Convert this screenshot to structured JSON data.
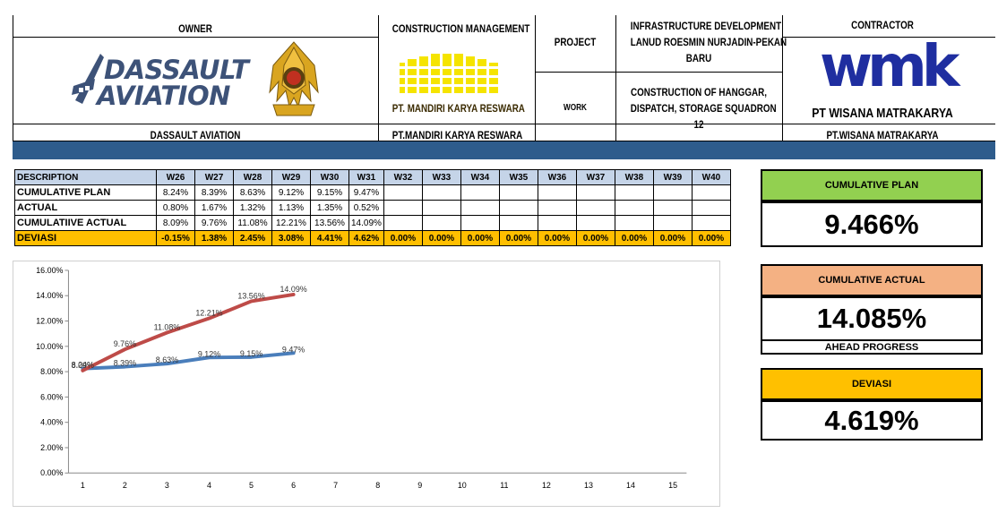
{
  "header": {
    "owner_title": "OWNER",
    "owner_name": "DASSAULT AVIATION",
    "owner_logo_line1": "DASSAULT",
    "owner_logo_line2": "AVIATION",
    "cm_title": "CONSTRUCTION MANAGEMENT",
    "cm_logo_text": "PT. MANDIRI KARYA RESWARA",
    "cm_name": "PT.MANDIRI KARYA RESWARA",
    "project_label": "PROJECT",
    "project_line1": "INFRASTRUCTURE DEVELOPMENT",
    "project_line2": "LANUD ROESMIN NURJADIN-PEKAN",
    "project_line3": "BARU",
    "work_label": "WORK",
    "work_line1": "CONSTRUCTION OF HANGGAR,",
    "work_line2": "DISPATCH, STORAGE SQUADRON",
    "work_line3": "12",
    "contractor_title": "CONTRACTOR",
    "contractor_logo_text": "wmk",
    "contractor_logo_name": "PT WISANA MATRAKARYA",
    "contractor_name": "PT.WISANA MATRAKARYA"
  },
  "table": {
    "description_header": "DESCRIPTION",
    "weeks": [
      "W26",
      "W27",
      "W28",
      "W29",
      "W30",
      "W31",
      "W32",
      "W33",
      "W34",
      "W35",
      "W36",
      "W37",
      "W38",
      "W39",
      "W40"
    ],
    "rows": [
      {
        "label": "CUMULATIVE PLAN",
        "values": [
          "8.24%",
          "8.39%",
          "8.63%",
          "9.12%",
          "9.15%",
          "9.47%",
          "",
          "",
          "",
          "",
          "",
          "",
          "",
          "",
          ""
        ]
      },
      {
        "label": "ACTUAL",
        "values": [
          "0.80%",
          "1.67%",
          "1.32%",
          "1.13%",
          "1.35%",
          "0.52%",
          "",
          "",
          "",
          "",
          "",
          "",
          "",
          "",
          ""
        ]
      },
      {
        "label": "CUMULATIIVE ACTUAL",
        "values": [
          "8.09%",
          "9.76%",
          "11.08%",
          "12.21%",
          "13.56%",
          "14.09%",
          "",
          "",
          "",
          "",
          "",
          "",
          "",
          "",
          ""
        ]
      },
      {
        "label": "DEVIASI",
        "values": [
          "-0.15%",
          "1.38%",
          "2.45%",
          "3.08%",
          "4.41%",
          "4.62%",
          "0.00%",
          "0.00%",
          "0.00%",
          "0.00%",
          "0.00%",
          "0.00%",
          "0.00%",
          "0.00%",
          "0.00%"
        ]
      }
    ]
  },
  "kpi": {
    "plan_label": "CUMULATIVE PLAN",
    "plan_value": "9.466%",
    "plan_color": "#92d050",
    "actual_label": "CUMULATIVE ACTUAL",
    "actual_value": "14.085%",
    "actual_color": "#f4b183",
    "actual_note": "AHEAD PROGRESS",
    "dev_label": "DEVIASI",
    "dev_value": "4.619%",
    "dev_color": "#ffc000"
  },
  "chart_data": {
    "type": "line",
    "x": [
      1,
      2,
      3,
      4,
      5,
      6,
      7,
      8,
      9,
      10,
      11,
      12,
      13,
      14,
      15
    ],
    "ylim": [
      0,
      16
    ],
    "ytick_labels": [
      "0.00%",
      "2.00%",
      "4.00%",
      "6.00%",
      "8.00%",
      "10.00%",
      "12.00%",
      "14.00%",
      "16.00%"
    ],
    "grid": false,
    "series": [
      {
        "color": "#4a7ebb",
        "x": [
          1,
          2,
          3,
          4,
          5,
          6
        ],
        "values": [
          8.24,
          8.39,
          8.63,
          9.12,
          9.15,
          9.47
        ],
        "labels": [
          "8.24%",
          "8.39%",
          "8.63%",
          "9.12%",
          "9.15%",
          "9.47%"
        ]
      },
      {
        "color": "#be4b48",
        "x": [
          1,
          2,
          3,
          4,
          5,
          6
        ],
        "values": [
          8.09,
          9.76,
          11.08,
          12.21,
          13.56,
          14.09
        ],
        "labels": [
          "8.09%",
          "9.76%",
          "11.08%",
          "12.21%",
          "13.56%",
          "14.09%"
        ]
      }
    ]
  }
}
